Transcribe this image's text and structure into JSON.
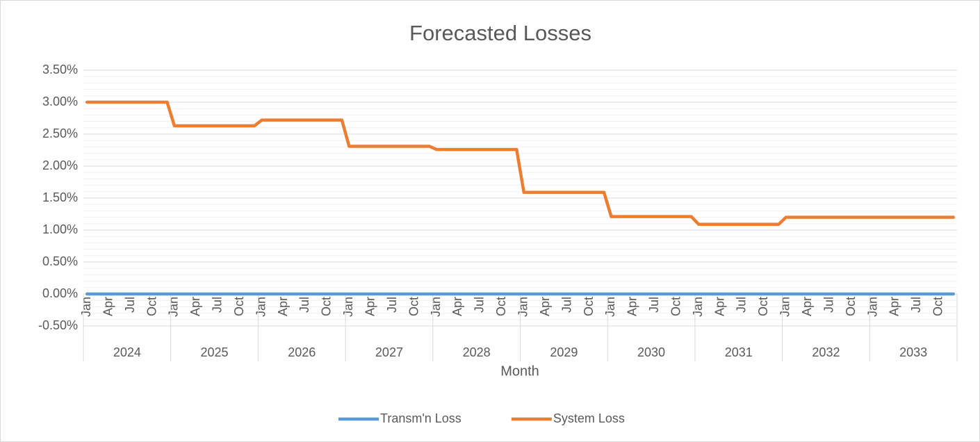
{
  "chart_data": {
    "type": "line",
    "title": "Forecasted Losses",
    "x_label": "Month",
    "categories": [
      "Jan",
      null,
      null,
      "Apr",
      null,
      null,
      "Jul",
      null,
      null,
      "Oct",
      null,
      null,
      "Jan",
      null,
      null,
      "Apr",
      null,
      null,
      "Jul",
      null,
      null,
      "Oct",
      null,
      null,
      "Jan",
      null,
      null,
      "Apr",
      null,
      null,
      "Jul",
      null,
      null,
      "Oct",
      null,
      null,
      "Jan",
      null,
      null,
      "Apr",
      null,
      null,
      "Jul",
      null,
      null,
      "Oct",
      null,
      null,
      "Jan",
      null,
      null,
      "Apr",
      null,
      null,
      "Jul",
      null,
      null,
      "Oct",
      null,
      null,
      "Jan",
      null,
      null,
      "Apr",
      null,
      null,
      "Jul",
      null,
      null,
      "Oct",
      null,
      null,
      "Jan",
      null,
      null,
      "Apr",
      null,
      null,
      "Jul",
      null,
      null,
      "Oct",
      null,
      null,
      "Jan",
      null,
      null,
      "Apr",
      null,
      null,
      "Jul",
      null,
      null,
      "Oct",
      null,
      null,
      "Jan",
      null,
      null,
      "Apr",
      null,
      null,
      "Jul",
      null,
      null,
      "Oct",
      null,
      null,
      "Jan",
      null,
      null,
      "Apr",
      null,
      null,
      "Jul",
      null,
      null,
      "Oct",
      null,
      null
    ],
    "category_groups": [
      "2024",
      "2025",
      "2026",
      "2027",
      "2028",
      "2029",
      "2030",
      "2031",
      "2032",
      "2033"
    ],
    "series": [
      {
        "name": "Transm'n Loss",
        "color": "#5b9bd5",
        "values": [
          0,
          0,
          0,
          0,
          0,
          0,
          0,
          0,
          0,
          0,
          0,
          0,
          0,
          0,
          0,
          0,
          0,
          0,
          0,
          0,
          0,
          0,
          0,
          0,
          0,
          0,
          0,
          0,
          0,
          0,
          0,
          0,
          0,
          0,
          0,
          0,
          0,
          0,
          0,
          0,
          0,
          0,
          0,
          0,
          0,
          0,
          0,
          0,
          0,
          0,
          0,
          0,
          0,
          0,
          0,
          0,
          0,
          0,
          0,
          0,
          0,
          0,
          0,
          0,
          0,
          0,
          0,
          0,
          0,
          0,
          0,
          0,
          0,
          0,
          0,
          0,
          0,
          0,
          0,
          0,
          0,
          0,
          0,
          0,
          0,
          0,
          0,
          0,
          0,
          0,
          0,
          0,
          0,
          0,
          0,
          0,
          0,
          0,
          0,
          0,
          0,
          0,
          0,
          0,
          0,
          0,
          0,
          0,
          0,
          0,
          0,
          0,
          0,
          0,
          0,
          0,
          0,
          0,
          0,
          0
        ]
      },
      {
        "name": "System Loss",
        "color": "#ed7d31",
        "values": [
          3,
          3,
          3,
          3,
          3,
          3,
          3,
          3,
          3,
          3,
          3,
          3,
          2.63,
          2.63,
          2.63,
          2.63,
          2.63,
          2.63,
          2.63,
          2.63,
          2.63,
          2.63,
          2.63,
          2.63,
          2.72,
          2.72,
          2.72,
          2.72,
          2.72,
          2.72,
          2.72,
          2.72,
          2.72,
          2.72,
          2.72,
          2.72,
          2.31,
          2.31,
          2.31,
          2.31,
          2.31,
          2.31,
          2.31,
          2.31,
          2.31,
          2.31,
          2.31,
          2.31,
          2.26,
          2.26,
          2.26,
          2.26,
          2.26,
          2.26,
          2.26,
          2.26,
          2.26,
          2.26,
          2.26,
          2.26,
          1.59,
          1.59,
          1.59,
          1.59,
          1.59,
          1.59,
          1.59,
          1.59,
          1.59,
          1.59,
          1.59,
          1.59,
          1.21,
          1.21,
          1.21,
          1.21,
          1.21,
          1.21,
          1.21,
          1.21,
          1.21,
          1.21,
          1.21,
          1.21,
          1.09,
          1.09,
          1.09,
          1.09,
          1.09,
          1.09,
          1.09,
          1.09,
          1.09,
          1.09,
          1.09,
          1.09,
          1.2,
          1.2,
          1.2,
          1.2,
          1.2,
          1.2,
          1.2,
          1.2,
          1.2,
          1.2,
          1.2,
          1.2,
          1.2,
          1.2,
          1.2,
          1.2,
          1.2,
          1.2,
          1.2,
          1.2,
          1.2,
          1.2,
          1.2,
          1.2
        ]
      }
    ],
    "ylim": [
      -0.5,
      3.5
    ],
    "yticks": [
      {
        "value": -0.5,
        "label": "-0.50%"
      },
      {
        "value": 0,
        "label": "0.00%"
      },
      {
        "value": 0.5,
        "label": "0.50%"
      },
      {
        "value": 1,
        "label": "1.00%"
      },
      {
        "value": 1.5,
        "label": "1.50%"
      },
      {
        "value": 2,
        "label": "2.00%"
      },
      {
        "value": 2.5,
        "label": "2.50%"
      },
      {
        "value": 3,
        "label": "3.00%"
      },
      {
        "value": 3.5,
        "label": "3.50%"
      }
    ],
    "grid": true,
    "minor_grid": true,
    "legend": "bottom"
  }
}
